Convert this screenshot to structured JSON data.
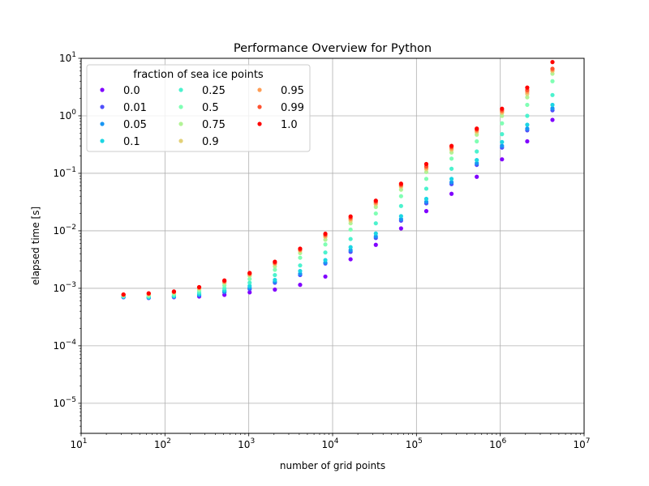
{
  "chart_data": {
    "type": "scatter",
    "title": "Performance Overview for Python",
    "xlabel": "number of grid points",
    "ylabel": "elapsed time [s]",
    "xscale": "log",
    "yscale": "log",
    "xlim": [
      10,
      10000000
    ],
    "ylim": [
      3e-06,
      10
    ],
    "grid": true,
    "legend": {
      "title": "fraction of sea ice points",
      "placement": "top-left",
      "columns": 3
    },
    "x_ticks": [
      {
        "base": "10",
        "exp": "1"
      },
      {
        "base": "10",
        "exp": "2"
      },
      {
        "base": "10",
        "exp": "3"
      },
      {
        "base": "10",
        "exp": "4"
      },
      {
        "base": "10",
        "exp": "5"
      },
      {
        "base": "10",
        "exp": "6"
      },
      {
        "base": "10",
        "exp": "7"
      }
    ],
    "y_ticks": [
      {
        "base": "10",
        "exp": "−5"
      },
      {
        "base": "10",
        "exp": "−4"
      },
      {
        "base": "10",
        "exp": "−3"
      },
      {
        "base": "10",
        "exp": "−2"
      },
      {
        "base": "10",
        "exp": "−1"
      },
      {
        "base": "10",
        "exp": "0"
      },
      {
        "base": "10",
        "exp": "1"
      }
    ],
    "x": [
      32,
      64,
      128,
      256,
      512,
      1024,
      2048,
      4096,
      8192,
      16384,
      32768,
      65536,
      131072,
      262144,
      524288,
      1048576,
      2097152,
      4194304
    ],
    "series": [
      {
        "name": "0.0",
        "color": "#8000ff",
        "values": [
          0.0007,
          0.00068,
          0.0007,
          0.00072,
          0.00077,
          0.00085,
          0.00095,
          0.00115,
          0.0016,
          0.0032,
          0.0057,
          0.011,
          0.022,
          0.044,
          0.087,
          0.175,
          0.36,
          0.85
        ]
      },
      {
        "name": "0.01",
        "color": "#4f4ffb",
        "values": [
          0.0007,
          0.00068,
          0.00071,
          0.00075,
          0.00085,
          0.00097,
          0.00125,
          0.0017,
          0.0027,
          0.0043,
          0.0075,
          0.015,
          0.03,
          0.065,
          0.14,
          0.28,
          0.56,
          1.25
        ]
      },
      {
        "name": "0.05",
        "color": "#1996f3",
        "values": [
          0.00071,
          0.00069,
          0.00072,
          0.00077,
          0.00088,
          0.00102,
          0.0013,
          0.0018,
          0.0028,
          0.0046,
          0.008,
          0.016,
          0.032,
          0.07,
          0.15,
          0.3,
          0.6,
          1.35
        ]
      },
      {
        "name": "0.1",
        "color": "#1cd6e3",
        "values": [
          0.00072,
          0.0007,
          0.00073,
          0.0008,
          0.00092,
          0.0011,
          0.0014,
          0.002,
          0.0031,
          0.0052,
          0.009,
          0.018,
          0.036,
          0.08,
          0.17,
          0.35,
          0.7,
          1.55
        ]
      },
      {
        "name": "0.25",
        "color": "#4cf2ce",
        "values": [
          0.00073,
          0.00072,
          0.00076,
          0.00085,
          0.001,
          0.00125,
          0.0017,
          0.0025,
          0.0042,
          0.0072,
          0.0135,
          0.027,
          0.054,
          0.12,
          0.24,
          0.48,
          1.0,
          2.3
        ]
      },
      {
        "name": "0.5",
        "color": "#80ffb4",
        "values": [
          0.00075,
          0.00075,
          0.0008,
          0.00092,
          0.00112,
          0.00145,
          0.0021,
          0.0034,
          0.0058,
          0.0105,
          0.02,
          0.04,
          0.08,
          0.18,
          0.36,
          0.74,
          1.55,
          4.0
        ]
      },
      {
        "name": "0.75",
        "color": "#b2f396",
        "values": [
          0.00076,
          0.00077,
          0.00083,
          0.00097,
          0.00122,
          0.00165,
          0.0024,
          0.0041,
          0.007,
          0.0135,
          0.026,
          0.052,
          0.105,
          0.23,
          0.47,
          1.0,
          2.1,
          5.4
        ]
      },
      {
        "name": "0.9",
        "color": "#e3d178",
        "values": [
          0.00077,
          0.00079,
          0.00085,
          0.001,
          0.00128,
          0.00172,
          0.00265,
          0.0045,
          0.0078,
          0.015,
          0.029,
          0.058,
          0.118,
          0.255,
          0.52,
          1.13,
          2.4,
          6.0
        ]
      },
      {
        "name": "0.95",
        "color": "#ff9d55",
        "values": [
          0.00077,
          0.0008,
          0.00086,
          0.00102,
          0.0013,
          0.00176,
          0.0027,
          0.0046,
          0.0082,
          0.016,
          0.0305,
          0.061,
          0.125,
          0.27,
          0.55,
          1.18,
          2.6,
          6.3
        ]
      },
      {
        "name": "0.99",
        "color": "#ff5230",
        "values": [
          0.00078,
          0.00081,
          0.00087,
          0.00104,
          0.00133,
          0.0018,
          0.0028,
          0.00475,
          0.0085,
          0.0168,
          0.032,
          0.063,
          0.132,
          0.285,
          0.575,
          1.25,
          2.8,
          6.6
        ]
      },
      {
        "name": "1.0",
        "color": "#ff0000",
        "values": [
          0.00078,
          0.00082,
          0.00088,
          0.00105,
          0.00137,
          0.00185,
          0.0029,
          0.0049,
          0.0089,
          0.0178,
          0.0335,
          0.066,
          0.145,
          0.3,
          0.6,
          1.33,
          3.1,
          8.6
        ]
      }
    ]
  }
}
